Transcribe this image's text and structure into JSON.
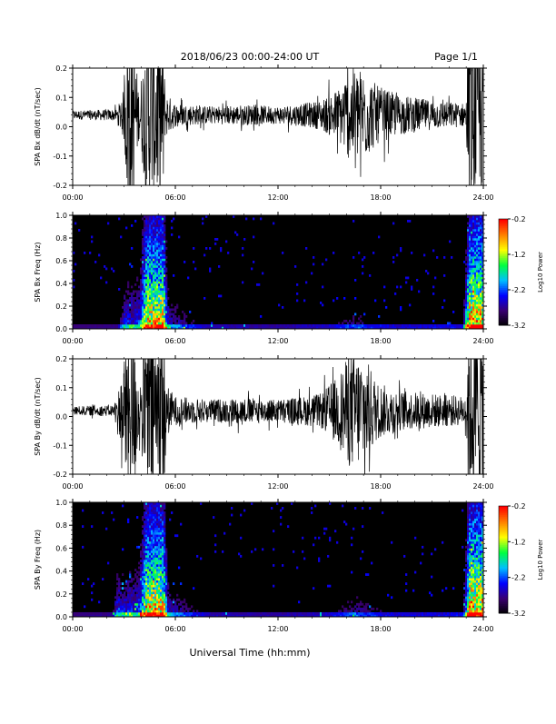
{
  "header": {
    "title": "2018/06/23  00:00-24:00 UT",
    "page": "Page 1/1"
  },
  "footer": {
    "xlabel": "Universal Time (hh:mm)"
  },
  "colors": {
    "trace": "#000000",
    "colormap": [
      "#000000",
      "#3a0070",
      "#0000ff",
      "#00c0ff",
      "#00ff40",
      "#ffff00",
      "#ff8000",
      "#ff0000"
    ]
  },
  "chart_data": [
    {
      "type": "line",
      "panel": "bx-timeseries",
      "ylabel": "SPA Bx dB/dt (nT/sec)",
      "xlim": [
        0,
        24
      ],
      "ylim": [
        -0.2,
        0.2
      ],
      "x_ticks": [
        "00:00",
        "06:00",
        "12:00",
        "18:00",
        "24:00"
      ],
      "y_ticks": [
        "-0.2",
        "-0.1",
        "0.0",
        "0.1",
        "0.2"
      ],
      "baseline": 0.04,
      "envelope": {
        "hours": [
          0,
          2.6,
          3.0,
          3.2,
          3.5,
          3.9,
          4.3,
          5.3,
          5.4,
          6.0,
          8,
          10,
          12,
          13.5,
          14.5,
          15.5,
          16.2,
          17.0,
          17.8,
          19,
          21,
          23.0,
          23.1,
          24
        ],
        "amplitude": [
          0.015,
          0.02,
          0.09,
          0.3,
          0.3,
          0.07,
          0.3,
          0.3,
          0.08,
          0.04,
          0.03,
          0.035,
          0.03,
          0.04,
          0.05,
          0.09,
          0.16,
          0.16,
          0.1,
          0.07,
          0.05,
          0.04,
          0.3,
          0.3
        ]
      }
    },
    {
      "type": "heatmap",
      "panel": "bx-spectrogram",
      "ylabel": "SPA Bx Freq (Hz)",
      "xlim": [
        0,
        24
      ],
      "ylim": [
        0.0,
        1.0
      ],
      "x_ticks": [
        "00:00",
        "06:00",
        "12:00",
        "18:00",
        "24:00"
      ],
      "y_ticks": [
        "0.0",
        "0.2",
        "0.4",
        "0.6",
        "0.8",
        "1.0"
      ],
      "colorbar": {
        "label": "Log10 Power",
        "range": [
          -3.2,
          -0.2
        ],
        "ticks": [
          "-0.2",
          "-1.2",
          "-2.2",
          "-3.2"
        ]
      },
      "activity": {
        "hours": [
          0,
          2.6,
          3.0,
          3.9,
          4.3,
          5.3,
          5.6,
          8,
          12,
          15,
          16.5,
          17.5,
          19,
          22.8,
          23.2,
          24
        ],
        "level": [
          0.03,
          0.04,
          0.3,
          0.35,
          0.8,
          0.8,
          0.25,
          0.08,
          0.06,
          0.1,
          0.18,
          0.14,
          0.1,
          0.12,
          0.85,
          0.85
        ]
      }
    },
    {
      "type": "line",
      "panel": "by-timeseries",
      "ylabel": "SPA By dB/dt (nT/sec)",
      "xlim": [
        0,
        24
      ],
      "ylim": [
        -0.2,
        0.2
      ],
      "x_ticks": [
        "00:00",
        "06:00",
        "12:00",
        "18:00",
        "24:00"
      ],
      "y_ticks": [
        "-0.2",
        "-0.1",
        "0.0",
        "0.1",
        "0.2"
      ],
      "baseline": 0.02,
      "envelope": {
        "hours": [
          0,
          2.4,
          2.8,
          3.2,
          3.6,
          3.9,
          4.3,
          5.4,
          5.5,
          6.0,
          8,
          10,
          12,
          13.5,
          14.5,
          15.5,
          16.2,
          17.0,
          17.8,
          19,
          21,
          23.0,
          23.1,
          24
        ],
        "amplitude": [
          0.015,
          0.02,
          0.1,
          0.3,
          0.3,
          0.08,
          0.3,
          0.3,
          0.09,
          0.05,
          0.04,
          0.045,
          0.04,
          0.05,
          0.06,
          0.12,
          0.2,
          0.2,
          0.1,
          0.07,
          0.06,
          0.05,
          0.3,
          0.3
        ]
      }
    },
    {
      "type": "heatmap",
      "panel": "by-spectrogram",
      "ylabel": "SPA By Freq (Hz)",
      "xlim": [
        0,
        24
      ],
      "ylim": [
        0.0,
        1.0
      ],
      "x_ticks": [
        "00:00",
        "06:00",
        "12:00",
        "18:00",
        "24:00"
      ],
      "y_ticks": [
        "0.0",
        "0.2",
        "0.4",
        "0.6",
        "0.8",
        "1.0"
      ],
      "colorbar": {
        "label": "Log10 Power",
        "range": [
          -3.2,
          -0.2
        ],
        "ticks": [
          "-0.2",
          "-1.2",
          "-2.2",
          "-3.2"
        ]
      },
      "activity": {
        "hours": [
          0,
          2.3,
          2.6,
          3.0,
          3.9,
          4.3,
          5.3,
          5.6,
          8,
          12,
          15,
          16.5,
          17.5,
          19,
          22.8,
          23.2,
          24
        ],
        "level": [
          0.03,
          0.05,
          0.35,
          0.3,
          0.35,
          0.8,
          0.8,
          0.25,
          0.08,
          0.06,
          0.1,
          0.2,
          0.15,
          0.1,
          0.12,
          0.85,
          0.85
        ]
      }
    }
  ]
}
